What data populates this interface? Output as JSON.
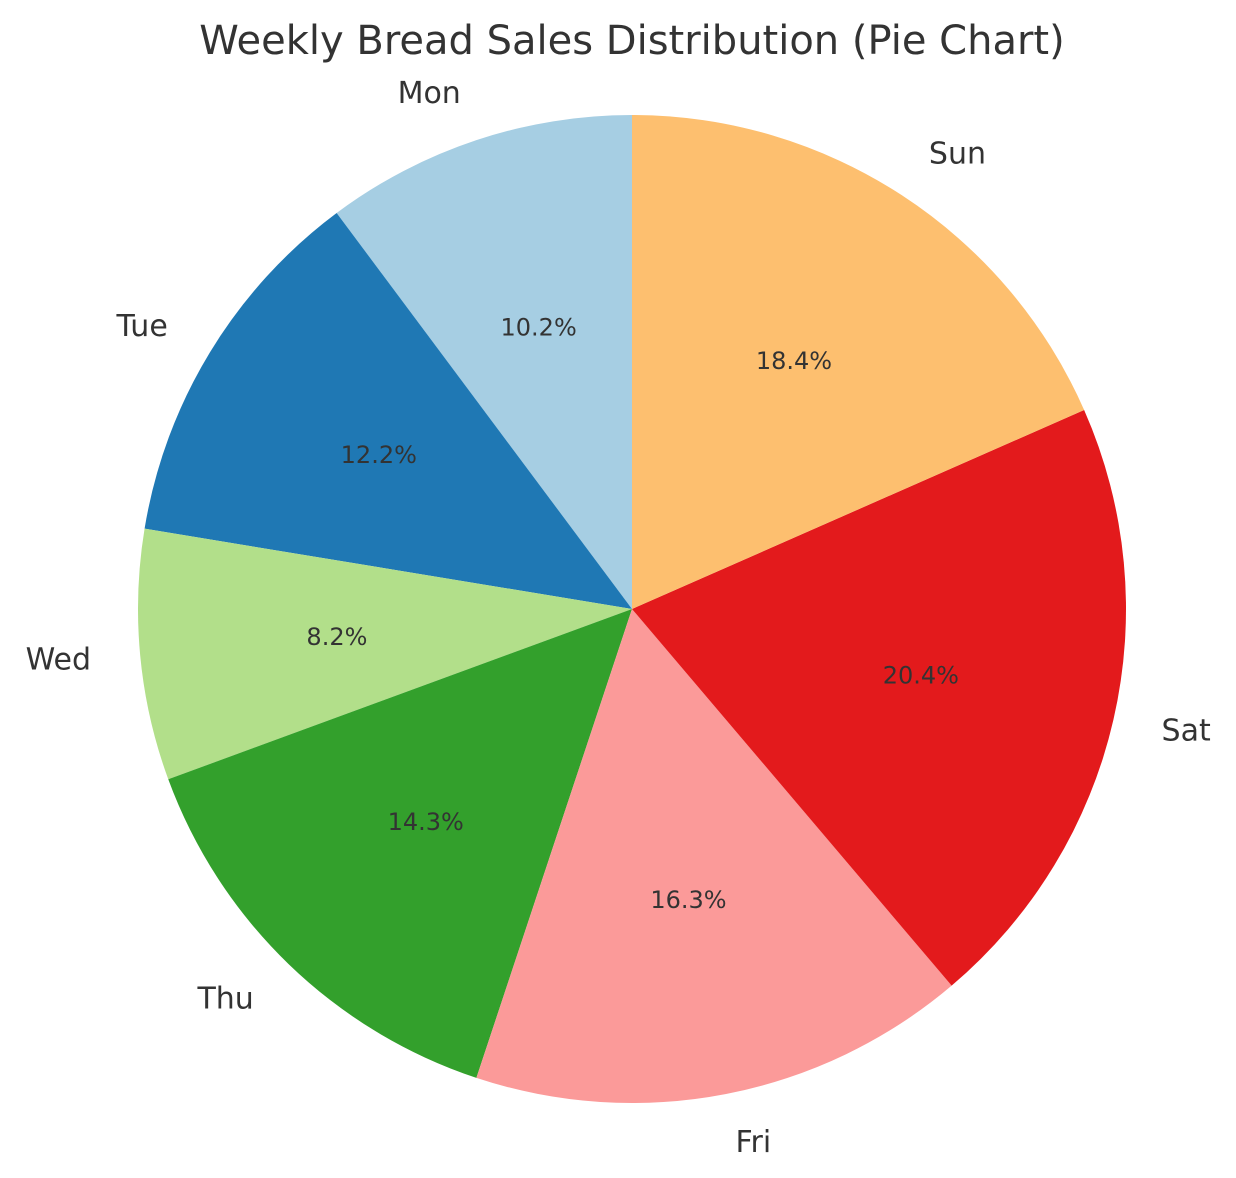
{
  "chart_data": {
    "type": "pie",
    "title": "Weekly Bread Sales Distribution (Pie Chart)",
    "start_angle_deg": 90,
    "direction": "counterclockwise",
    "slices": [
      {
        "label": "Mon",
        "value": 10.2,
        "pct_label": "10.2%",
        "color": "#a6cee3"
      },
      {
        "label": "Tue",
        "value": 12.2,
        "pct_label": "12.2%",
        "color": "#1f78b4"
      },
      {
        "label": "Wed",
        "value": 8.2,
        "pct_label": "8.2%",
        "color": "#b2df8a"
      },
      {
        "label": "Thu",
        "value": 14.3,
        "pct_label": "14.3%",
        "color": "#33a02c"
      },
      {
        "label": "Fri",
        "value": 16.3,
        "pct_label": "16.3%",
        "color": "#fb9a99"
      },
      {
        "label": "Sat",
        "value": 20.4,
        "pct_label": "20.4%",
        "color": "#e31a1c"
      },
      {
        "label": "Sun",
        "value": 18.4,
        "pct_label": "18.4%",
        "color": "#fdbf6f"
      }
    ]
  }
}
